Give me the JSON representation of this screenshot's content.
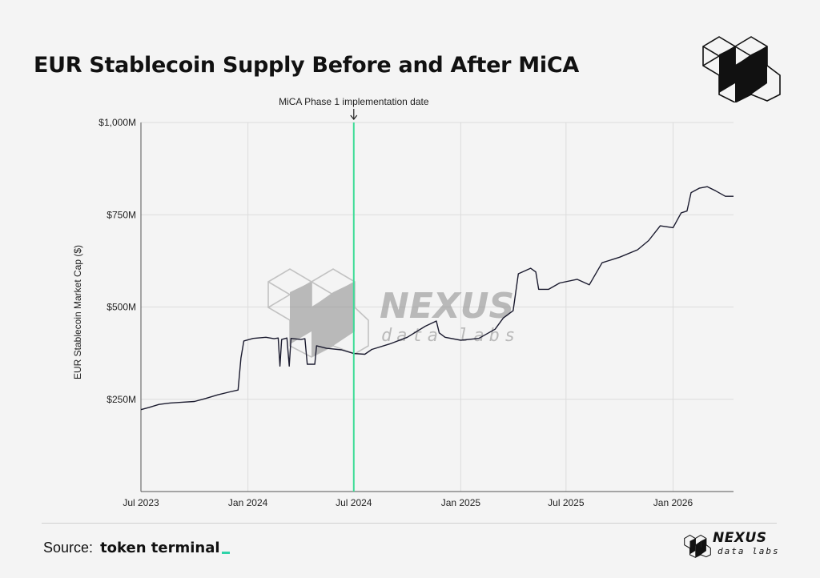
{
  "header": {
    "title": "EUR Stablecoin Supply Before and After MiCA"
  },
  "branding": {
    "logo_icon": "nexus-cube-logo-icon",
    "watermark_word": "NEXUS",
    "watermark_sub": "data labs",
    "footer_word": "NEXUS",
    "footer_sub": "data labs"
  },
  "footer": {
    "source_label": "Source:",
    "source_brand": "token terminal"
  },
  "colors": {
    "line": "#1a1a2e",
    "annotation": "#3ddc97",
    "grid": "#dcdcdc",
    "accent": "#2ed3a8"
  },
  "chart_data": {
    "type": "line",
    "title": "EUR Stablecoin Supply Before and After MiCA",
    "xlabel": "",
    "ylabel": "EUR Stablecoin Market Cap ($)",
    "ylim": [
      0,
      1000
    ],
    "xlim": [
      "2023-07-01",
      "2026-04-15"
    ],
    "y_ticks": [
      250,
      500,
      750,
      1000
    ],
    "y_tick_labels": [
      "$250M",
      "$500M",
      "$750M",
      "$1,000M"
    ],
    "x_ticks": [
      "2023-07-01",
      "2024-01-01",
      "2024-07-01",
      "2025-01-01",
      "2025-07-01",
      "2026-01-01"
    ],
    "x_tick_labels": [
      "Jul 2023",
      "Jan 2024",
      "Jul 2024",
      "Jan 2025",
      "Jul 2025",
      "Jan 2026"
    ],
    "grid": true,
    "annotation": {
      "date": "2024-07-01",
      "label": "MiCA Phase 1 implementation date"
    },
    "series": [
      {
        "name": "",
        "points": [
          [
            "2023-07-01",
            222
          ],
          [
            "2023-07-15",
            228
          ],
          [
            "2023-08-01",
            236
          ],
          [
            "2023-08-20",
            240
          ],
          [
            "2023-09-10",
            242
          ],
          [
            "2023-10-01",
            244
          ],
          [
            "2023-10-20",
            252
          ],
          [
            "2023-11-10",
            262
          ],
          [
            "2023-12-01",
            270
          ],
          [
            "2023-12-15",
            275
          ],
          [
            "2023-12-20",
            362
          ],
          [
            "2023-12-25",
            408
          ],
          [
            "2024-01-10",
            415
          ],
          [
            "2024-02-01",
            418
          ],
          [
            "2024-02-15",
            414
          ],
          [
            "2024-02-22",
            416
          ],
          [
            "2024-02-25",
            340
          ],
          [
            "2024-02-28",
            412
          ],
          [
            "2024-03-08",
            416
          ],
          [
            "2024-03-12",
            340
          ],
          [
            "2024-03-15",
            415
          ],
          [
            "2024-04-01",
            412
          ],
          [
            "2024-04-08",
            414
          ],
          [
            "2024-04-12",
            345
          ],
          [
            "2024-04-25",
            345
          ],
          [
            "2024-04-28",
            395
          ],
          [
            "2024-05-15",
            388
          ],
          [
            "2024-06-10",
            384
          ],
          [
            "2024-07-01",
            374
          ],
          [
            "2024-07-20",
            372
          ],
          [
            "2024-08-01",
            385
          ],
          [
            "2024-09-01",
            400
          ],
          [
            "2024-10-01",
            418
          ],
          [
            "2024-11-01",
            448
          ],
          [
            "2024-11-20",
            462
          ],
          [
            "2024-11-25",
            430
          ],
          [
            "2024-12-05",
            418
          ],
          [
            "2025-01-01",
            410
          ],
          [
            "2025-02-01",
            415
          ],
          [
            "2025-03-01",
            440
          ],
          [
            "2025-03-15",
            470
          ],
          [
            "2025-04-01",
            490
          ],
          [
            "2025-04-10",
            590
          ],
          [
            "2025-05-01",
            605
          ],
          [
            "2025-05-10",
            595
          ],
          [
            "2025-05-15",
            548
          ],
          [
            "2025-06-01",
            548
          ],
          [
            "2025-06-20",
            565
          ],
          [
            "2025-07-20",
            575
          ],
          [
            "2025-08-10",
            560
          ],
          [
            "2025-09-01",
            620
          ],
          [
            "2025-10-01",
            635
          ],
          [
            "2025-11-01",
            655
          ],
          [
            "2025-11-20",
            680
          ],
          [
            "2025-12-10",
            720
          ],
          [
            "2026-01-01",
            715
          ],
          [
            "2026-01-15",
            755
          ],
          [
            "2026-01-25",
            760
          ],
          [
            "2026-02-01",
            810
          ],
          [
            "2026-02-15",
            822
          ],
          [
            "2026-03-01",
            826
          ],
          [
            "2026-03-15",
            815
          ],
          [
            "2026-04-01",
            800
          ],
          [
            "2026-04-15",
            800
          ]
        ]
      }
    ]
  }
}
